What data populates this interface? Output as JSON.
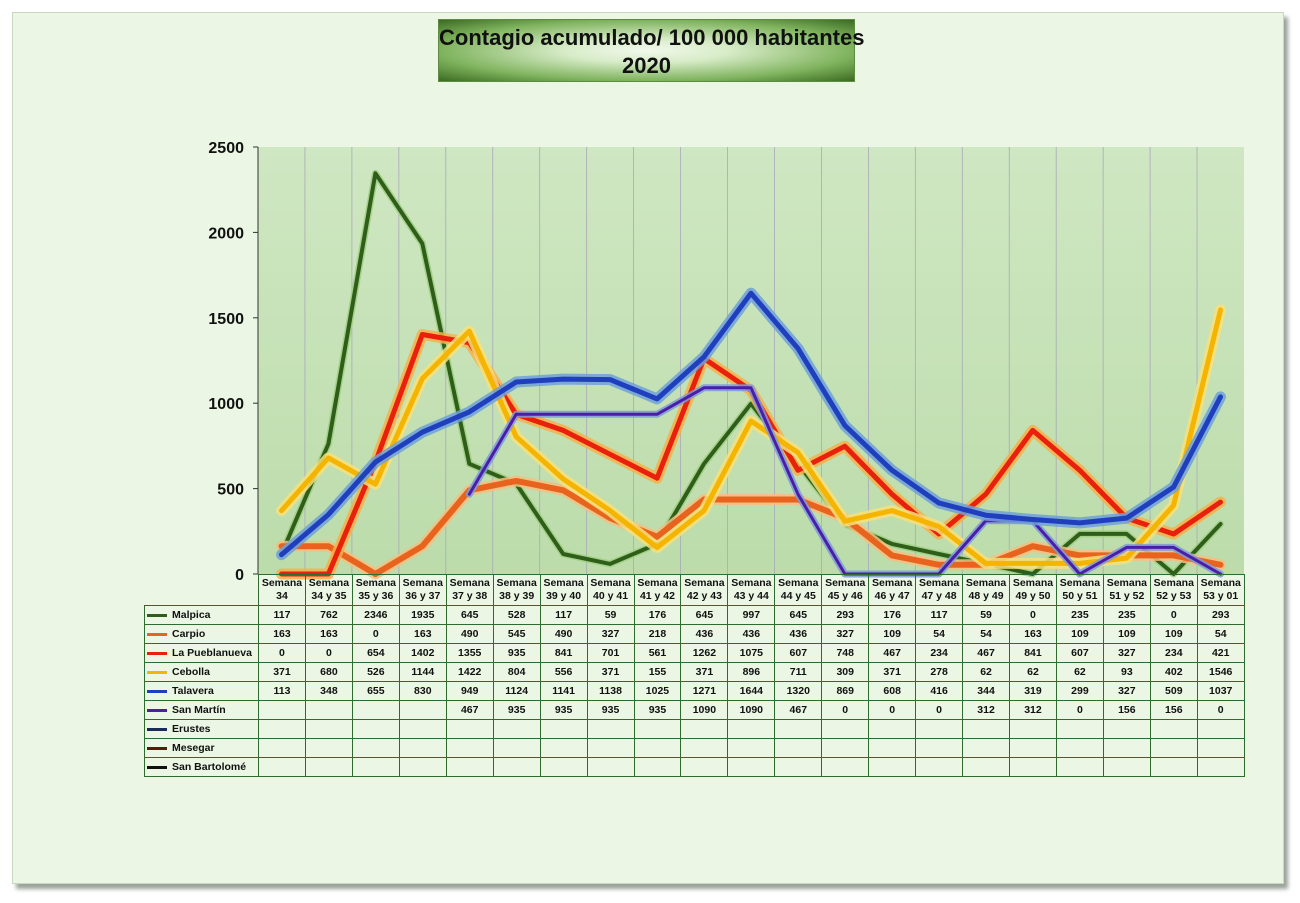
{
  "chart_data": {
    "type": "line",
    "title": "Contagio acumulado/ 100 000 habitantes",
    "subtitle": "2020",
    "xlabel": "",
    "ylabel": "",
    "ylim": [
      0,
      2500
    ],
    "yticks": [
      "0",
      "500",
      "1000",
      "1500",
      "2000",
      "2500"
    ],
    "grid": "vertical",
    "legend": "data-table",
    "categories": [
      [
        "Semana",
        "34"
      ],
      [
        "Semana",
        "34 y 35"
      ],
      [
        "Semana",
        "35 y 36"
      ],
      [
        "Semana",
        "36 y 37"
      ],
      [
        "Semana",
        "37 y 38"
      ],
      [
        "Semana",
        "38 y 39"
      ],
      [
        "Semana",
        "39 y 40"
      ],
      [
        "Semana",
        "40 y 41"
      ],
      [
        "Semana",
        "41 y 42"
      ],
      [
        "Semana",
        "42 y 43"
      ],
      [
        "Semana",
        "43 y 44"
      ],
      [
        "Semana",
        "44 y 45"
      ],
      [
        "Semana",
        "45 y 46"
      ],
      [
        "Semana",
        "46 y 47"
      ],
      [
        "Semana",
        "47 y 48"
      ],
      [
        "Semana",
        "48 y 49"
      ],
      [
        "Semana",
        "49 y 50"
      ],
      [
        "Semana",
        "50 y 51"
      ],
      [
        "Semana",
        "51 y 52"
      ],
      [
        "Semana",
        "52 y 53"
      ],
      [
        "Semana",
        "53 y 01"
      ]
    ],
    "series": [
      {
        "name": "Malpica",
        "color": "#2e5e1a",
        "values": [
          117,
          762,
          2346,
          1935,
          645,
          528,
          117,
          59,
          176,
          645,
          997,
          645,
          293,
          176,
          117,
          59,
          0,
          235,
          235,
          0,
          293
        ]
      },
      {
        "name": "Carpio",
        "color": "#e8641e",
        "values": [
          163,
          163,
          0,
          163,
          490,
          545,
          490,
          327,
          218,
          436,
          436,
          436,
          327,
          109,
          54,
          54,
          163,
          109,
          109,
          109,
          54
        ]
      },
      {
        "name": "La Pueblanueva",
        "color": "#e8200c",
        "values": [
          0,
          0,
          654,
          1402,
          1355,
          935,
          841,
          701,
          561,
          1262,
          1075,
          607,
          748,
          467,
          234,
          467,
          841,
          607,
          327,
          234,
          421
        ]
      },
      {
        "name": "Cebolla",
        "color": "#f5b400",
        "values": [
          371,
          680,
          526,
          1144,
          1422,
          804,
          556,
          371,
          155,
          371,
          896,
          711,
          309,
          371,
          278,
          62,
          62,
          62,
          93,
          402,
          1546
        ]
      },
      {
        "name": "Talavera",
        "color": "#1f3fbf",
        "values": [
          113,
          348,
          655,
          830,
          949,
          1124,
          1141,
          1138,
          1025,
          1271,
          1644,
          1320,
          869,
          608,
          416,
          344,
          319,
          299,
          327,
          509,
          1037
        ]
      },
      {
        "name": "San Martín",
        "color": "#4a1ea8",
        "values": [
          null,
          null,
          null,
          null,
          467,
          935,
          935,
          935,
          935,
          1090,
          1090,
          467,
          0,
          0,
          0,
          312,
          312,
          0,
          156,
          156,
          0
        ]
      },
      {
        "name": "Erustes",
        "color": "#1a2b5a",
        "values": [
          null,
          null,
          null,
          null,
          null,
          null,
          null,
          null,
          null,
          null,
          null,
          null,
          null,
          null,
          null,
          null,
          null,
          null,
          null,
          null,
          null
        ]
      },
      {
        "name": "Mesegar",
        "color": "#5a1a0a",
        "values": [
          null,
          null,
          null,
          null,
          null,
          null,
          null,
          null,
          null,
          null,
          null,
          null,
          null,
          null,
          null,
          null,
          null,
          null,
          null,
          null,
          null
        ]
      },
      {
        "name": "San Bartolomé",
        "color": "#111111",
        "values": [
          null,
          null,
          null,
          null,
          null,
          null,
          null,
          null,
          null,
          null,
          null,
          null,
          null,
          null,
          null,
          null,
          null,
          null,
          null,
          null,
          null
        ]
      }
    ]
  }
}
